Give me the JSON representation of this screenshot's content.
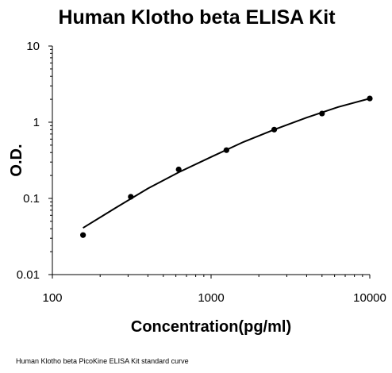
{
  "chart_data": {
    "type": "scatter",
    "title": "Human Klotho beta ELISA Kit",
    "xlabel": "Concentration(pg/ml)",
    "ylabel": "O.D.",
    "caption": "Human Klotho beta PicoKine ELISA Kit standard curve",
    "x_scale": "log",
    "y_scale": "log",
    "xlim": [
      100,
      10000
    ],
    "ylim": [
      0.01,
      10
    ],
    "x_ticks": [
      "100",
      "1000",
      "10000"
    ],
    "y_ticks": [
      "10",
      "1",
      "0.1",
      "0.01"
    ],
    "grid": false,
    "legend": "none",
    "points": [
      {
        "x": 156,
        "y": 0.033
      },
      {
        "x": 312,
        "y": 0.105
      },
      {
        "x": 625,
        "y": 0.24
      },
      {
        "x": 1250,
        "y": 0.43
      },
      {
        "x": 2500,
        "y": 0.8
      },
      {
        "x": 5000,
        "y": 1.3
      },
      {
        "x": 10000,
        "y": 2.05
      }
    ],
    "fit_curve": {
      "type": "power",
      "x": [
        156,
        250,
        400,
        625,
        1000,
        1600,
        2500,
        4000,
        6300,
        10000
      ],
      "y": [
        0.041,
        0.075,
        0.135,
        0.22,
        0.35,
        0.55,
        0.8,
        1.15,
        1.58,
        2.05
      ]
    },
    "colors": {
      "points": "#000000",
      "curve": "#000000",
      "axes": "#000000"
    }
  }
}
